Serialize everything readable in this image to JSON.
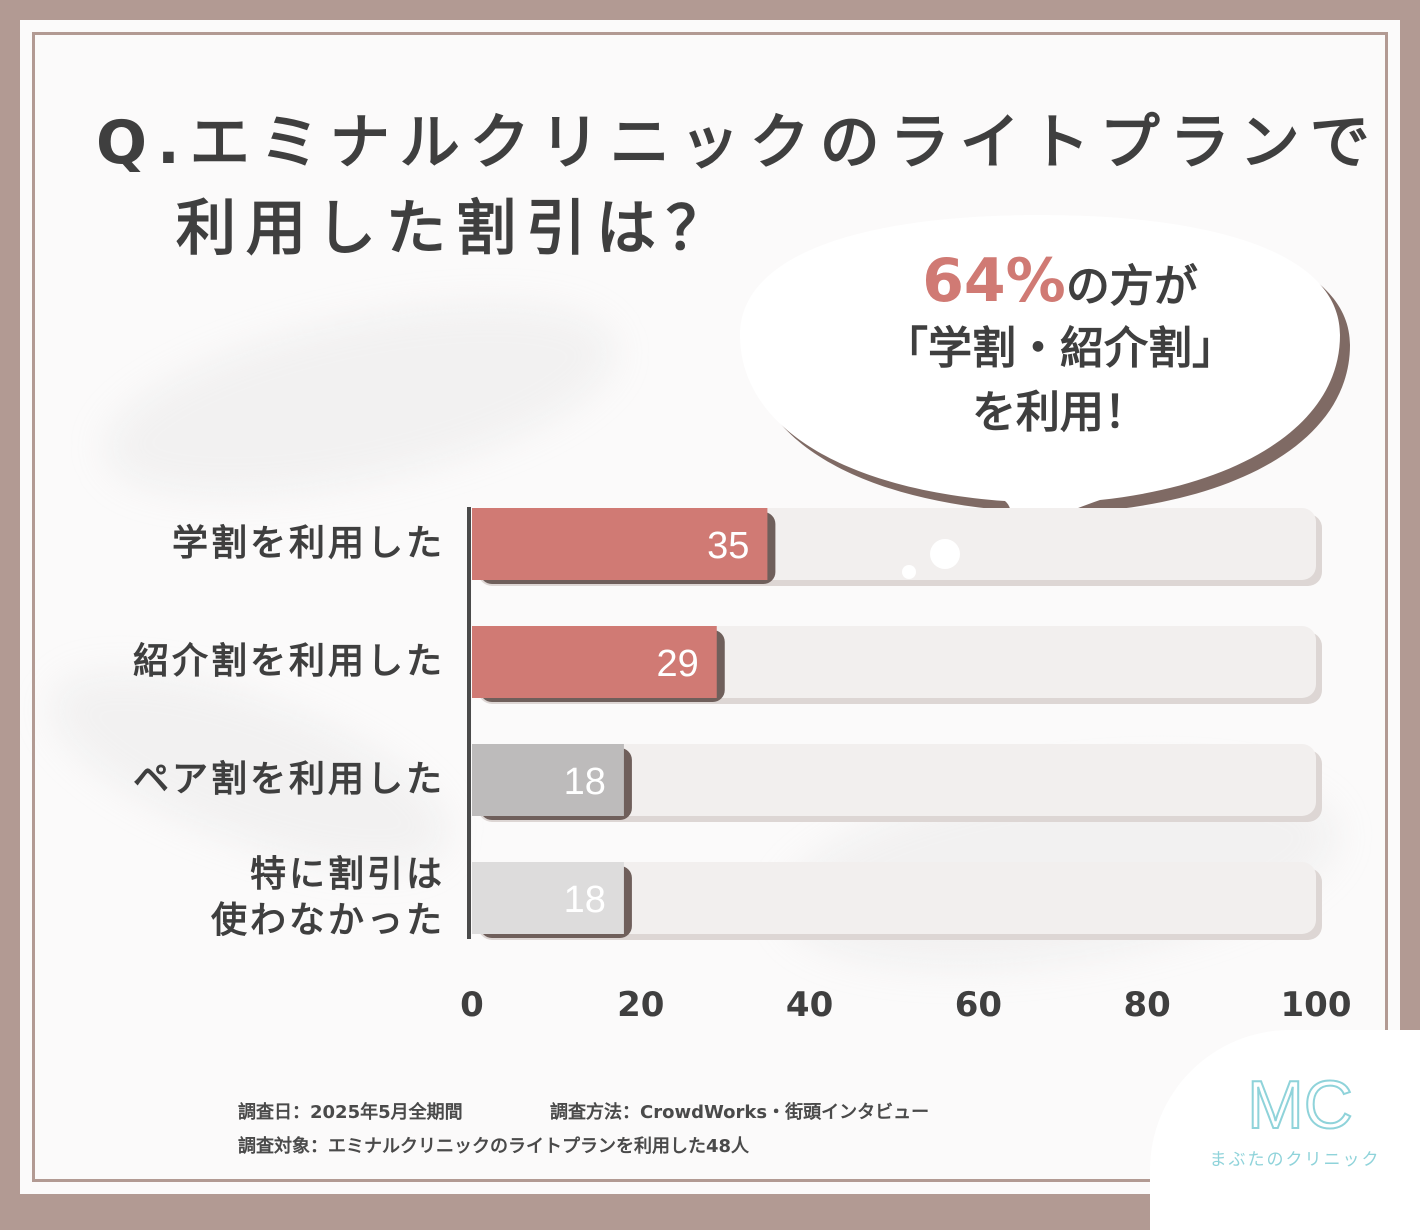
{
  "title": {
    "line1": "Q.エミナルクリニックのライトプランで",
    "line2": "利用した割引は？"
  },
  "callout": {
    "pct": "64%",
    "line1_rest": "の方が",
    "line2": "「学割・紹介割」",
    "line3": "を利用！"
  },
  "chart_data": {
    "type": "bar",
    "orientation": "horizontal",
    "categories": [
      "学割を利用した",
      "紹介割を利用した",
      "ペア割を利用した",
      "特に割引は使わなかった"
    ],
    "category_lines": [
      [
        "学割を利用した"
      ],
      [
        "紹介割を利用した"
      ],
      [
        "ペア割を利用した"
      ],
      [
        "特に割引は",
        "使わなかった"
      ]
    ],
    "values": [
      35,
      29,
      18,
      18
    ],
    "xlim": [
      0,
      100
    ],
    "xticks": [
      "0",
      "20",
      "40",
      "60",
      "80",
      "100"
    ],
    "colors": [
      "#d07a74",
      "#d07a74",
      "#bdbbbb",
      "#dddcdc"
    ],
    "track_color": "#f2efee",
    "grid": false
  },
  "footer": {
    "date": "調査日：2025年5月全期間",
    "method": "調査方法：CrowdWorks・街頭インタビュー",
    "target": "調査対象：エミナルクリニックのライトプランを利用した48人"
  },
  "logo": {
    "mark": "MC",
    "name": "まぶたのクリニック",
    "color": "#8fd3da"
  }
}
